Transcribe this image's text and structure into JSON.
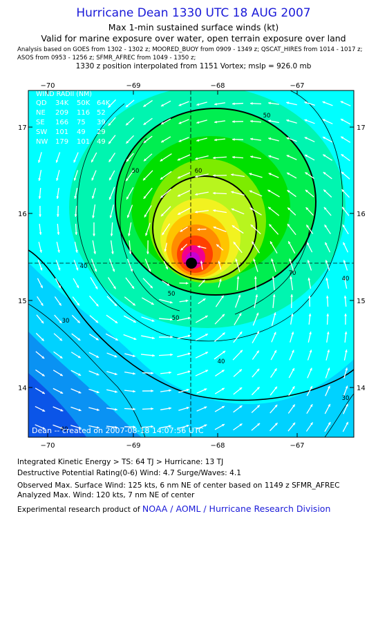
{
  "header": {
    "title": "Hurricane Dean 1330 UTC 18 AUG 2007",
    "subtitle_1": "Max 1-min sustained surface winds (kt)",
    "subtitle_2": "Valid for marine exposure over water, open terrain exposure over land",
    "analysis_line_1": "Analysis based on  GOES from 1302 - 1302 z;  MOORED_BUOY from 0909 - 1349 z;  QSCAT_HIRES from 1014 - 1017 z;",
    "analysis_line_2": "ASOS from 0953 - 1256 z;  SFMR_AFREC from 1049 - 1350 z;",
    "position_line": "1330 z position interpolated from 1151 Vortex; mslp = 926.0 mb"
  },
  "map": {
    "lon_ticks": [
      "−70",
      "−69",
      "−68",
      "−67"
    ],
    "lat_ticks": [
      "17",
      "16",
      "15",
      "14"
    ],
    "contour_labels": [
      "50",
      "50",
      "60",
      "40",
      "40",
      "50",
      "50",
      "70",
      "40",
      "30",
      "40",
      "30"
    ],
    "watermark": "Dean -- created on 2007-08-18  14:07:56 UTC",
    "center": {
      "lon": -68.27,
      "lat": 15.45
    },
    "colors": {
      "v20": "#0b55e8",
      "v30": "#0a92f3",
      "v34": "#00d2ff",
      "v40": "#00ffff",
      "v45": "#00f5b0",
      "v50": "#00ee50",
      "v55": "#00e000",
      "v60": "#7dec00",
      "v64": "#b8f51e",
      "v70": "#f2f220",
      "v80": "#ffc400",
      "v90": "#ff8c00",
      "v100": "#ff4000",
      "v110": "#f2008c",
      "v120": "#c800d2",
      "v125": "#9000d8",
      "arrow": "#ffffff",
      "line": "#000000"
    }
  },
  "wind_radii": {
    "title": "WIND RADII (NM)",
    "header": [
      "QD",
      "34K",
      "50K",
      "64K"
    ],
    "rows": [
      [
        "NE",
        "209",
        "116",
        "52"
      ],
      [
        "SE",
        "166",
        "75",
        "39"
      ],
      [
        "SW",
        "101",
        "49",
        "29"
      ],
      [
        "NW",
        "179",
        "101",
        "49"
      ]
    ]
  },
  "footer": {
    "ike_line": "Integrated Kinetic Energy > TS: 64 TJ   > Hurricane: 13 TJ",
    "dpr_line": "Destructive Potential Rating(0-6)   Wind: 4.7 Surge/Waves: 4.1",
    "observed_line": "Observed Max. Surface Wind: 125 kts, 6 nm NE of center based on 1149 z SFMR_AFREC",
    "analyzed_line": "Analyzed Max. Wind: 120 kts, 7 nm NE of center",
    "credit_prefix": "Experimental research product of ",
    "credit_link": "NOAA / AOML / Hurricane Research Division"
  }
}
